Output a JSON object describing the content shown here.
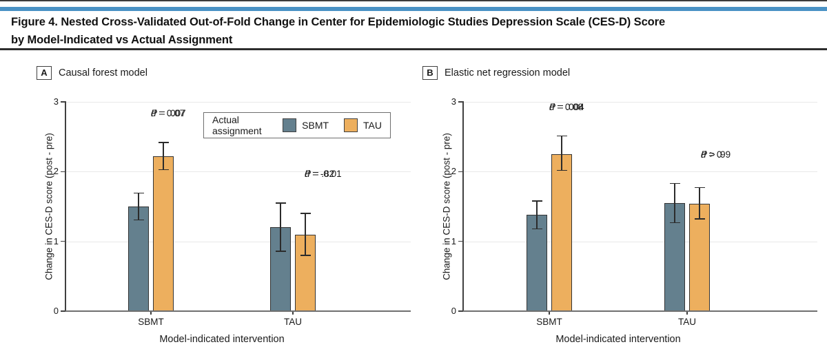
{
  "figure": {
    "title_line1": "Figure 4. Nested Cross-Validated Out-of-Fold Change in Center for Epidemiologic Studies Depression Scale (CES-D) Score",
    "title_line2": "by Model-Indicated vs Actual Assignment"
  },
  "legend": {
    "title": "Actual assignment",
    "entries": [
      {
        "label": "SBMT",
        "color": "#64808e"
      },
      {
        "label": "TAU",
        "color": "#edaf5e"
      }
    ]
  },
  "colors": {
    "accent_blue_rule": "#4a92c5",
    "sbmt_bar": "#64808e",
    "tau_bar": "#edaf5e",
    "bar_border": "#333333",
    "gridline": "#e8e8e8",
    "axis": "#3f3f3f",
    "text": "#1a1a1a"
  },
  "chart_data": [
    {
      "type": "bar",
      "panel_letter": "A",
      "title": "Causal forest model",
      "xlabel": "Model-indicated intervention",
      "ylabel": "Change in CES-D score (post - pre)",
      "ylim": [
        0,
        3
      ],
      "yticks": [
        0,
        1,
        2,
        3
      ],
      "grid": true,
      "legend_position": "top-center",
      "categories": [
        "SBMT",
        "TAU"
      ],
      "series": [
        {
          "name": "SBMT",
          "color": "#64808e",
          "values": [
            1.5,
            1.2
          ],
          "err_low": [
            1.31,
            0.86
          ],
          "err_high": [
            1.69,
            1.55
          ]
        },
        {
          "name": "TAU",
          "color": "#edaf5e",
          "values": [
            2.22,
            1.1
          ],
          "err_low": [
            2.03,
            0.8
          ],
          "err_high": [
            2.42,
            1.4
          ]
        }
      ],
      "annotations": [
        {
          "line1": "d = 0.07",
          "line2": "P = .007"
        },
        {
          "line1": "d = -0.01",
          "line2": "P = .82"
        }
      ]
    },
    {
      "type": "bar",
      "panel_letter": "B",
      "title": "Elastic net regression model",
      "xlabel": "Model-indicated intervention",
      "ylabel": "Change in CES-D score (post - pre)",
      "ylim": [
        0,
        3
      ],
      "yticks": [
        0,
        1,
        2,
        3
      ],
      "grid": true,
      "categories": [
        "SBMT",
        "TAU"
      ],
      "series": [
        {
          "name": "SBMT",
          "color": "#64808e",
          "values": [
            1.38,
            1.55
          ],
          "err_low": [
            1.18,
            1.27
          ],
          "err_high": [
            1.58,
            1.83
          ]
        },
        {
          "name": "TAU",
          "color": "#edaf5e",
          "values": [
            2.25,
            1.54
          ],
          "err_low": [
            2.02,
            1.32
          ],
          "err_high": [
            2.51,
            1.77
          ]
        }
      ],
      "annotations": [
        {
          "line1": "d = 0.08",
          "line2": "P = .004"
        },
        {
          "line1": "d = 0",
          "line2": "P > .99"
        }
      ]
    }
  ]
}
